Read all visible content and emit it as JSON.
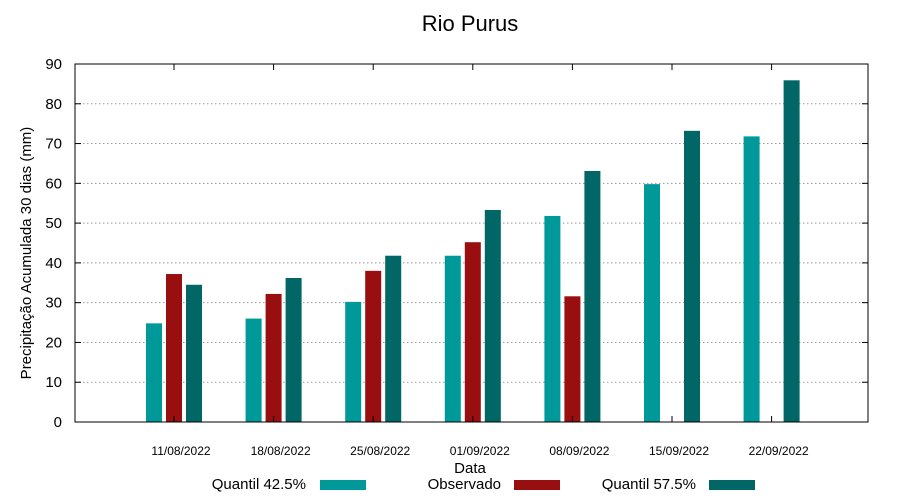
{
  "chart_data": {
    "type": "bar",
    "title": "Rio Purus",
    "xlabel": "Data",
    "ylabel": "Precipitação Acumulada 30 dias (mm)",
    "ylim": [
      0,
      90
    ],
    "yticks": [
      0,
      10,
      20,
      30,
      40,
      50,
      60,
      70,
      80,
      90
    ],
    "grid": true,
    "legend_position": "bottom",
    "categories": [
      "11/08/2022",
      "18/08/2022",
      "25/08/2022",
      "01/09/2022",
      "08/09/2022",
      "15/09/2022",
      "22/09/2022"
    ],
    "series": [
      {
        "name": "Quantil 42.5%",
        "color": "#009999",
        "values": [
          24.8,
          26.0,
          30.2,
          41.8,
          51.8,
          59.8,
          71.8
        ]
      },
      {
        "name": "Observado",
        "color": "#990f0f",
        "values": [
          37.2,
          32.2,
          38.0,
          45.2,
          31.6,
          null,
          null
        ]
      },
      {
        "name": "Quantil 57.5%",
        "color": "#006666",
        "values": [
          34.5,
          36.2,
          41.8,
          53.3,
          63.1,
          73.2,
          85.9
        ]
      }
    ]
  }
}
